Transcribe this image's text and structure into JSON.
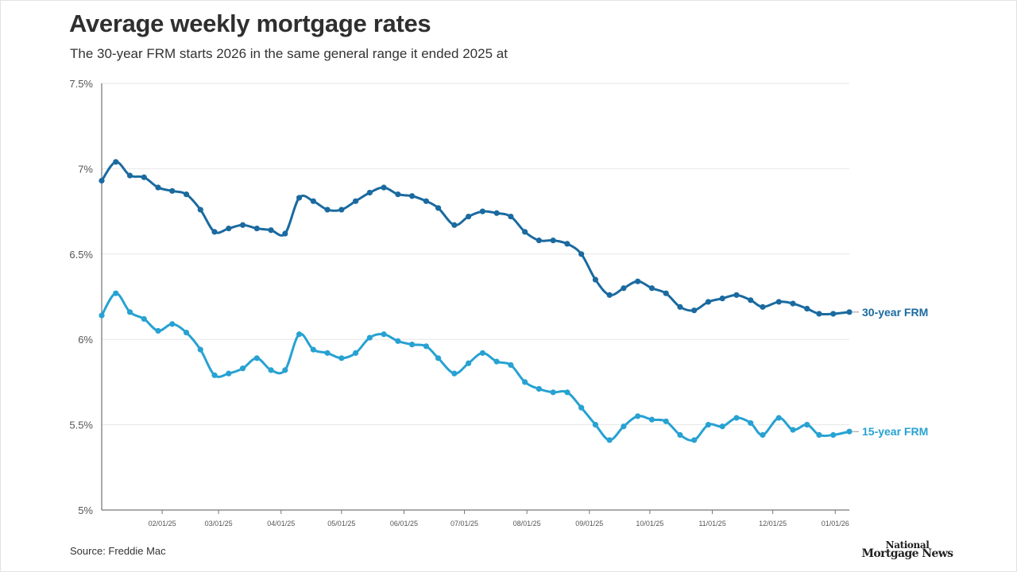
{
  "title": "Average weekly mortgage rates",
  "subtitle": "The 30-year FRM starts 2026 in the same general range it ended 2025 at",
  "source": "Source: Freddie Mac",
  "logo": {
    "line1": "National",
    "line2": "Mortgage News"
  },
  "colors": {
    "frm30": "#1a6aa0",
    "frm15": "#27a2d2"
  },
  "chart_data": {
    "type": "line",
    "title": "Average weekly mortgage rates",
    "subtitle": "The 30-year FRM starts 2026 in the same general range it ended 2025 at",
    "xlabel": "",
    "ylabel": "",
    "ylim": [
      5,
      7.5
    ],
    "yticks": [
      5,
      5.5,
      6,
      6.5,
      7,
      7.5
    ],
    "yticklabels": [
      "5%",
      "5.5%",
      "6%",
      "6.5%",
      "7%",
      "7.5%"
    ],
    "xlim": [
      "2025-01-02",
      "2026-01-08"
    ],
    "xticks": [
      "2025-02-01",
      "2025-03-01",
      "2025-04-01",
      "2025-05-01",
      "2025-06-01",
      "2025-07-01",
      "2025-08-01",
      "2025-09-01",
      "2025-10-01",
      "2025-11-01",
      "2025-12-01",
      "2026-01-01"
    ],
    "xticklabels": [
      "02/01/25",
      "03/01/25",
      "04/01/25",
      "05/01/25",
      "06/01/25",
      "07/01/25",
      "08/01/25",
      "09/01/25",
      "10/01/25",
      "11/01/25",
      "12/01/25",
      "01/01/26"
    ],
    "grid": true,
    "legend": "inline labels at right end of lines",
    "x": [
      "2025-01-02",
      "2025-01-09",
      "2025-01-16",
      "2025-01-23",
      "2025-01-30",
      "2025-02-06",
      "2025-02-13",
      "2025-02-20",
      "2025-02-27",
      "2025-03-06",
      "2025-03-13",
      "2025-03-20",
      "2025-03-27",
      "2025-04-03",
      "2025-04-10",
      "2025-04-17",
      "2025-04-24",
      "2025-05-01",
      "2025-05-08",
      "2025-05-15",
      "2025-05-22",
      "2025-05-29",
      "2025-06-05",
      "2025-06-12",
      "2025-06-18",
      "2025-06-26",
      "2025-07-03",
      "2025-07-10",
      "2025-07-17",
      "2025-07-24",
      "2025-07-31",
      "2025-08-07",
      "2025-08-14",
      "2025-08-21",
      "2025-08-28",
      "2025-09-04",
      "2025-09-11",
      "2025-09-18",
      "2025-09-25",
      "2025-10-02",
      "2025-10-09",
      "2025-10-16",
      "2025-10-23",
      "2025-10-30",
      "2025-11-06",
      "2025-11-13",
      "2025-11-20",
      "2025-11-26",
      "2025-12-04",
      "2025-12-11",
      "2025-12-18",
      "2025-12-24",
      "2025-12-31",
      "2026-01-08"
    ],
    "series": [
      {
        "name": "30-year FRM",
        "values": [
          6.93,
          7.04,
          6.96,
          6.95,
          6.89,
          6.87,
          6.85,
          6.76,
          6.63,
          6.65,
          6.67,
          6.65,
          6.64,
          6.62,
          6.83,
          6.81,
          6.76,
          6.76,
          6.81,
          6.86,
          6.89,
          6.85,
          6.84,
          6.81,
          6.77,
          6.67,
          6.72,
          6.75,
          6.74,
          6.72,
          6.63,
          6.58,
          6.58,
          6.56,
          6.5,
          6.35,
          6.26,
          6.3,
          6.34,
          6.3,
          6.27,
          6.19,
          6.17,
          6.22,
          6.24,
          6.26,
          6.23,
          6.19,
          6.22,
          6.21,
          6.18,
          6.15,
          6.15,
          6.16
        ]
      },
      {
        "name": "15-year FRM",
        "values": [
          6.14,
          6.27,
          6.16,
          6.12,
          6.05,
          6.09,
          6.04,
          5.94,
          5.79,
          5.8,
          5.83,
          5.89,
          5.82,
          5.82,
          6.03,
          5.94,
          5.92,
          5.89,
          5.92,
          6.01,
          6.03,
          5.99,
          5.97,
          5.96,
          5.89,
          5.8,
          5.86,
          5.92,
          5.87,
          5.85,
          5.75,
          5.71,
          5.69,
          5.69,
          5.6,
          5.5,
          5.41,
          5.49,
          5.55,
          5.53,
          5.52,
          5.44,
          5.41,
          5.5,
          5.49,
          5.54,
          5.51,
          5.44,
          5.54,
          5.47,
          5.5,
          5.44,
          5.44,
          5.46
        ]
      }
    ]
  }
}
